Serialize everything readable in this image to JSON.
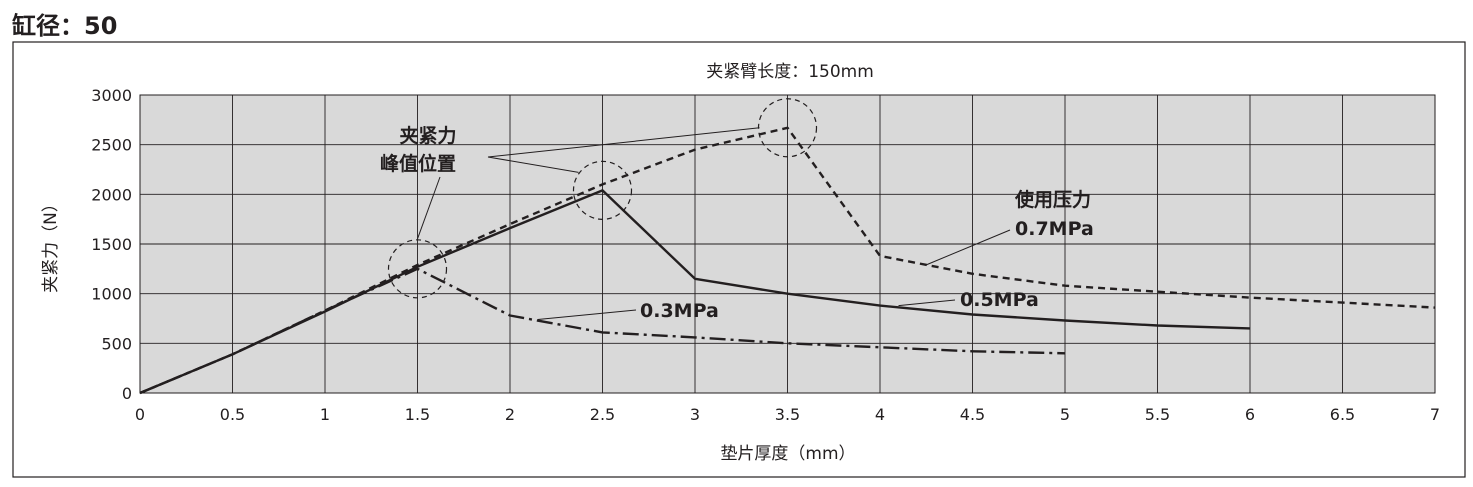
{
  "heading": "缸径：50",
  "chart_data": {
    "type": "line",
    "title": "夹紧臂长度：150mm",
    "xlabel": "垫片厚度（mm）",
    "ylabel": "夹紧力（N）",
    "xlim": [
      0,
      7
    ],
    "ylim": [
      0,
      3000
    ],
    "grid": true,
    "plot_background": "#d9d9d9",
    "x_ticks": [
      "0",
      "0.5",
      "1",
      "1.5",
      "2",
      "2.5",
      "3",
      "3.5",
      "4",
      "4.5",
      "5",
      "5.5",
      "6",
      "6.5",
      "7"
    ],
    "y_ticks": [
      "0",
      "500",
      "1000",
      "1500",
      "2000",
      "2500",
      "3000"
    ],
    "series": [
      {
        "name": "0.3MPa",
        "style": "dash-dot",
        "x": [
          0,
          0.5,
          1,
          1.5,
          2,
          2.5,
          3,
          3.5,
          4,
          4.5,
          5
        ],
        "y": [
          0,
          390,
          830,
          1250,
          780,
          610,
          560,
          500,
          460,
          420,
          400
        ]
      },
      {
        "name": "0.5MPa",
        "style": "solid",
        "x": [
          0,
          0.5,
          1,
          1.5,
          2,
          2.5,
          3,
          3.5,
          4,
          4.5,
          5,
          5.5,
          6
        ],
        "y": [
          0,
          390,
          820,
          1270,
          1660,
          2040,
          1150,
          1000,
          880,
          790,
          730,
          680,
          650
        ]
      },
      {
        "name": "0.7MPa",
        "style": "dashed",
        "x": [
          0,
          0.5,
          1,
          1.5,
          2,
          2.5,
          3,
          3.5,
          4,
          4.5,
          5,
          5.5,
          6,
          6.5,
          7
        ],
        "y": [
          0,
          390,
          830,
          1290,
          1700,
          2100,
          2450,
          2670,
          1380,
          1200,
          1080,
          1020,
          960,
          910,
          860
        ]
      }
    ],
    "peak_markers": [
      {
        "x": 1.5,
        "y": 1250
      },
      {
        "x": 2.5,
        "y": 2040
      },
      {
        "x": 3.5,
        "y": 2670
      }
    ],
    "annotations": {
      "peak_label_line1": "夹紧力",
      "peak_label_line2": "峰值位置",
      "pressure_label": "使用压力",
      "p07": "0.7MPa",
      "p05": "0.5MPa",
      "p03": "0.3MPa"
    }
  }
}
